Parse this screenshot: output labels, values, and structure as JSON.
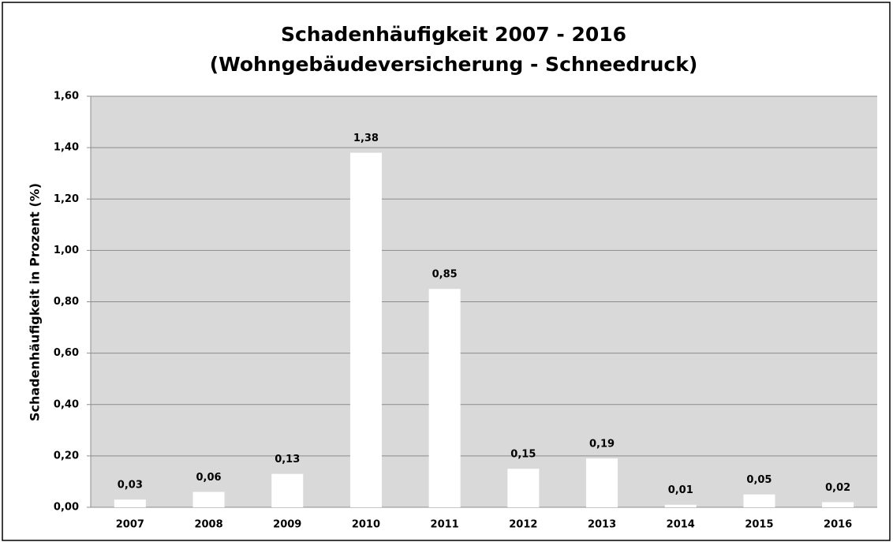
{
  "chart_data": {
    "type": "bar",
    "title": [
      "Schadenhäufigkeit 2007 - 2016",
      "(Wohngebäudeversicherung - Schneedruck)"
    ],
    "y_label": "Schadenhäufigkeit in Prozent (%)",
    "categories": [
      "2007",
      "2008",
      "2009",
      "2010",
      "2011",
      "2012",
      "2013",
      "2014",
      "2015",
      "2016"
    ],
    "values": [
      0.03,
      0.06,
      0.13,
      1.38,
      0.85,
      0.15,
      0.19,
      0.01,
      0.05,
      0.02
    ],
    "value_labels": [
      "0,03",
      "0,06",
      "0,13",
      "1,38",
      "0,85",
      "0,15",
      "0,19",
      "0,01",
      "0,05",
      "0,02"
    ],
    "color": "#ffffff",
    "ylim": [
      0,
      1.6
    ],
    "yticks": [
      {
        "value": 0,
        "label": "0,00"
      },
      {
        "value": 0.2,
        "label": "0,20"
      },
      {
        "value": 0.4,
        "label": "0,40"
      },
      {
        "value": 0.6,
        "label": "0,60"
      },
      {
        "value": 0.8,
        "label": "0,80"
      },
      {
        "value": 1.0,
        "label": "1,00"
      },
      {
        "value": 1.2,
        "label": "1,20"
      },
      {
        "value": 1.4,
        "label": "1,40"
      },
      {
        "value": 1.6,
        "label": "1,60"
      }
    ],
    "grid": true
  }
}
